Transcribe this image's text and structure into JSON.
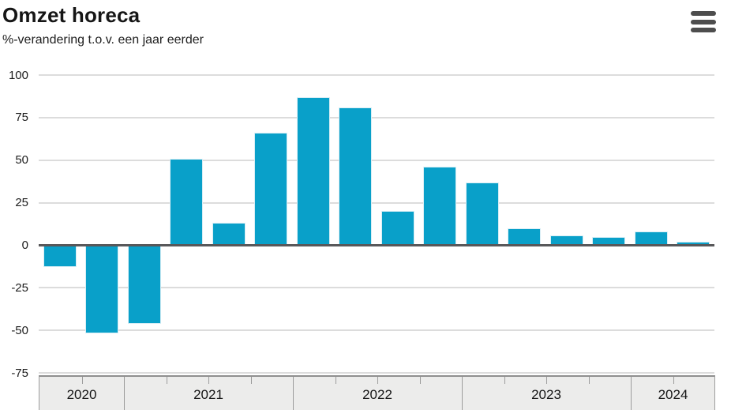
{
  "header": {
    "title": "Omzet horeca",
    "subtitle": "%-verandering t.o.v. een jaar eerder",
    "menu_icon": "hamburger-menu-icon"
  },
  "colors": {
    "bar": "#09a0c9",
    "bar_outline": "#d9eef5",
    "zero_line": "#58585a",
    "gridline": "#dcdcdc",
    "axis_band_bg": "#ececeb",
    "axis_band_border": "#9d9d9d",
    "text": "#1d1d1d",
    "menu_icon": "#4d4d4d"
  },
  "chart_data": {
    "type": "bar",
    "title": "Omzet horeca",
    "subtitle": "%-verandering t.o.v. een jaar eerder",
    "categories": [
      "2020 Q3",
      "2020 Q4",
      "2021 Q1",
      "2021 Q2",
      "2021 Q3",
      "2021 Q4",
      "2022 Q1",
      "2022 Q2",
      "2022 Q3",
      "2022 Q4",
      "2023 Q1",
      "2023 Q2",
      "2023 Q3",
      "2023 Q4",
      "2024 Q1",
      "2024 Q2"
    ],
    "values": [
      -13,
      -52,
      -46,
      51,
      13,
      66,
      87,
      81,
      20,
      46,
      37,
      10,
      6,
      5,
      8,
      2
    ],
    "year_groups": [
      {
        "label": "2020",
        "quarters": 2
      },
      {
        "label": "2021",
        "quarters": 4
      },
      {
        "label": "2022",
        "quarters": 4
      },
      {
        "label": "2023",
        "quarters": 4
      },
      {
        "label": "2024",
        "quarters": 2
      }
    ],
    "xlabel": "",
    "ylabel": "%-verandering t.o.v. een jaar eerder",
    "yticks": [
      100,
      75,
      50,
      25,
      0,
      -25,
      -50,
      -75
    ],
    "ylim": [
      -75,
      100
    ],
    "grid": true,
    "legend": "none"
  }
}
